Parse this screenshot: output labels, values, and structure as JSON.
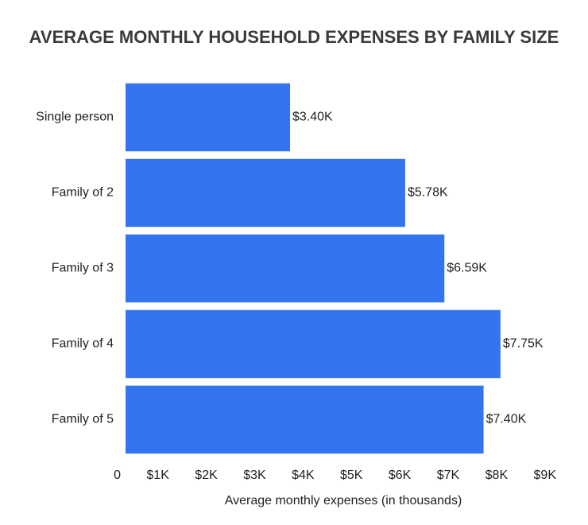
{
  "chart_data": {
    "type": "hbar",
    "title": "AVERAGE MONTHLY HOUSEHOLD EXPENSES BY FAMILY SIZE",
    "categories": [
      "Single person",
      "Family of 2",
      "Family of 3",
      "Family of 4",
      "Family of 5"
    ],
    "values": [
      3.4,
      5.78,
      6.59,
      7.75,
      7.4
    ],
    "value_labels": [
      "$3.40K",
      "$5.78K",
      "$6.59K",
      "$7.75K",
      "$7.40K"
    ],
    "color": "#3474ee",
    "xlabel": "Average monthly expenses (in thousands)",
    "xlim": [
      0,
      9
    ],
    "xticks": [
      0,
      {
        "value": 1,
        "label": "$1K"
      },
      {
        "value": 2,
        "label": "$2K"
      },
      {
        "value": 3,
        "label": "$3K"
      },
      {
        "value": 4,
        "label": "$4K"
      },
      {
        "value": 5,
        "label": "$5K"
      },
      {
        "value": 6,
        "label": "$6K"
      },
      {
        "value": 7,
        "label": "$7K"
      },
      {
        "value": 8,
        "label": "$8K"
      },
      {
        "value": 9,
        "label": "$9K"
      }
    ],
    "grid": false
  }
}
